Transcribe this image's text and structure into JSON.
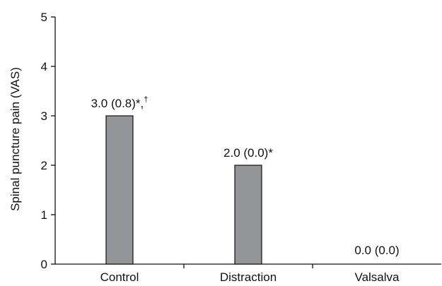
{
  "chart_data": {
    "type": "bar",
    "categories": [
      "Control",
      "Distraction",
      "Valsalva"
    ],
    "values": [
      3.0,
      2.0,
      0.0
    ],
    "data_labels": [
      {
        "main": "3.0 (0.8)*,",
        "superscript": "†"
      },
      {
        "main": "2.0 (0.0)*",
        "superscript": ""
      },
      {
        "main": "0.0 (0.0)",
        "superscript": ""
      }
    ],
    "title": "",
    "xlabel": "",
    "ylabel": "Spinal puncture pain (VAS)",
    "ylim": [
      0,
      5
    ],
    "yticks": [
      "0",
      "1",
      "2",
      "3",
      "4",
      "5"
    ],
    "grid": false,
    "bar_color": "#939598",
    "bar_edge_color": "#111111"
  }
}
